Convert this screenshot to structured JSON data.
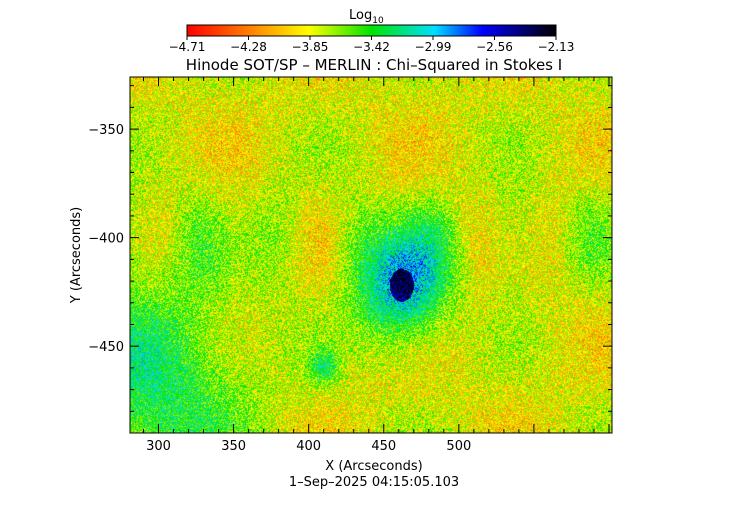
{
  "chart_data": {
    "type": "heatmap",
    "title": "Hinode SOT/SP – MERLIN : Chi–Squared in Stokes I",
    "xlabel": "X (Arcseconds)",
    "ylabel": "Y (Arcseconds)",
    "timestamp": "1–Sep–2025 04:15:05.103",
    "colorbar": {
      "label_base": "Log",
      "label_sub": "10",
      "ticks": [
        "−4.71",
        "−4.28",
        "−3.85",
        "−3.42",
        "−2.99",
        "−2.56",
        "−2.13"
      ],
      "range": [
        -4.71,
        -2.13
      ]
    },
    "xlim": [
      281,
      602
    ],
    "ylim": [
      -490,
      -326
    ],
    "x_ticks": [
      300,
      350,
      400,
      450,
      500
    ],
    "y_ticks": [
      -350,
      -400,
      -450
    ],
    "y_tick_labels": [
      "−350",
      "−400",
      "−450"
    ],
    "features": [
      {
        "x": 462,
        "y": -422,
        "value": -2.25
      },
      {
        "x": 410,
        "y": -460,
        "value": -3.4
      },
      {
        "x": 300,
        "y": -470,
        "value": -3.5
      }
    ]
  }
}
